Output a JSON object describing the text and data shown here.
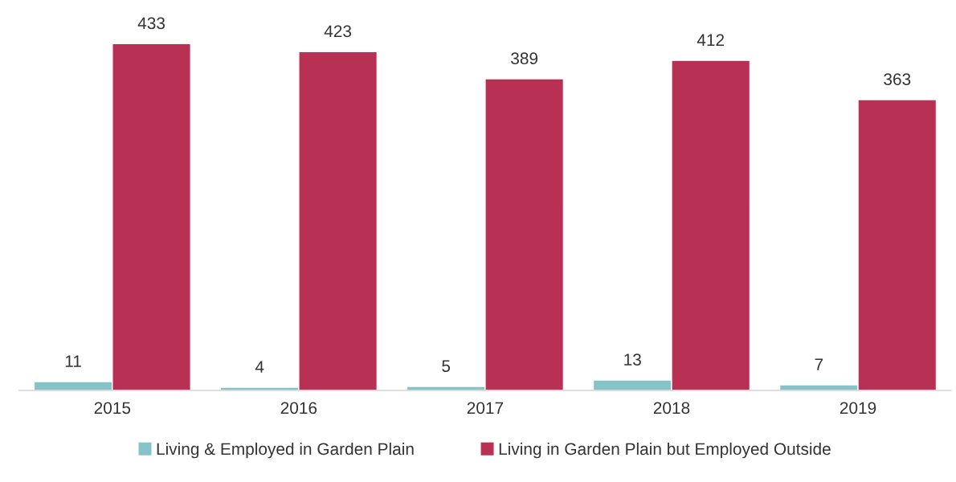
{
  "chart_data": {
    "type": "bar",
    "categories": [
      "2015",
      "2016",
      "2017",
      "2018",
      "2019"
    ],
    "series": [
      {
        "name": "Living & Employed in Garden Plain",
        "color": "#86c3c8",
        "values": [
          11,
          4,
          5,
          13,
          7
        ]
      },
      {
        "name": "Living in Garden Plain but Employed Outside",
        "color": "#b83053",
        "values": [
          433,
          423,
          389,
          412,
          363
        ]
      }
    ],
    "data_labels": true,
    "legend": "bottom",
    "grid": false,
    "tick_labels": "x"
  }
}
